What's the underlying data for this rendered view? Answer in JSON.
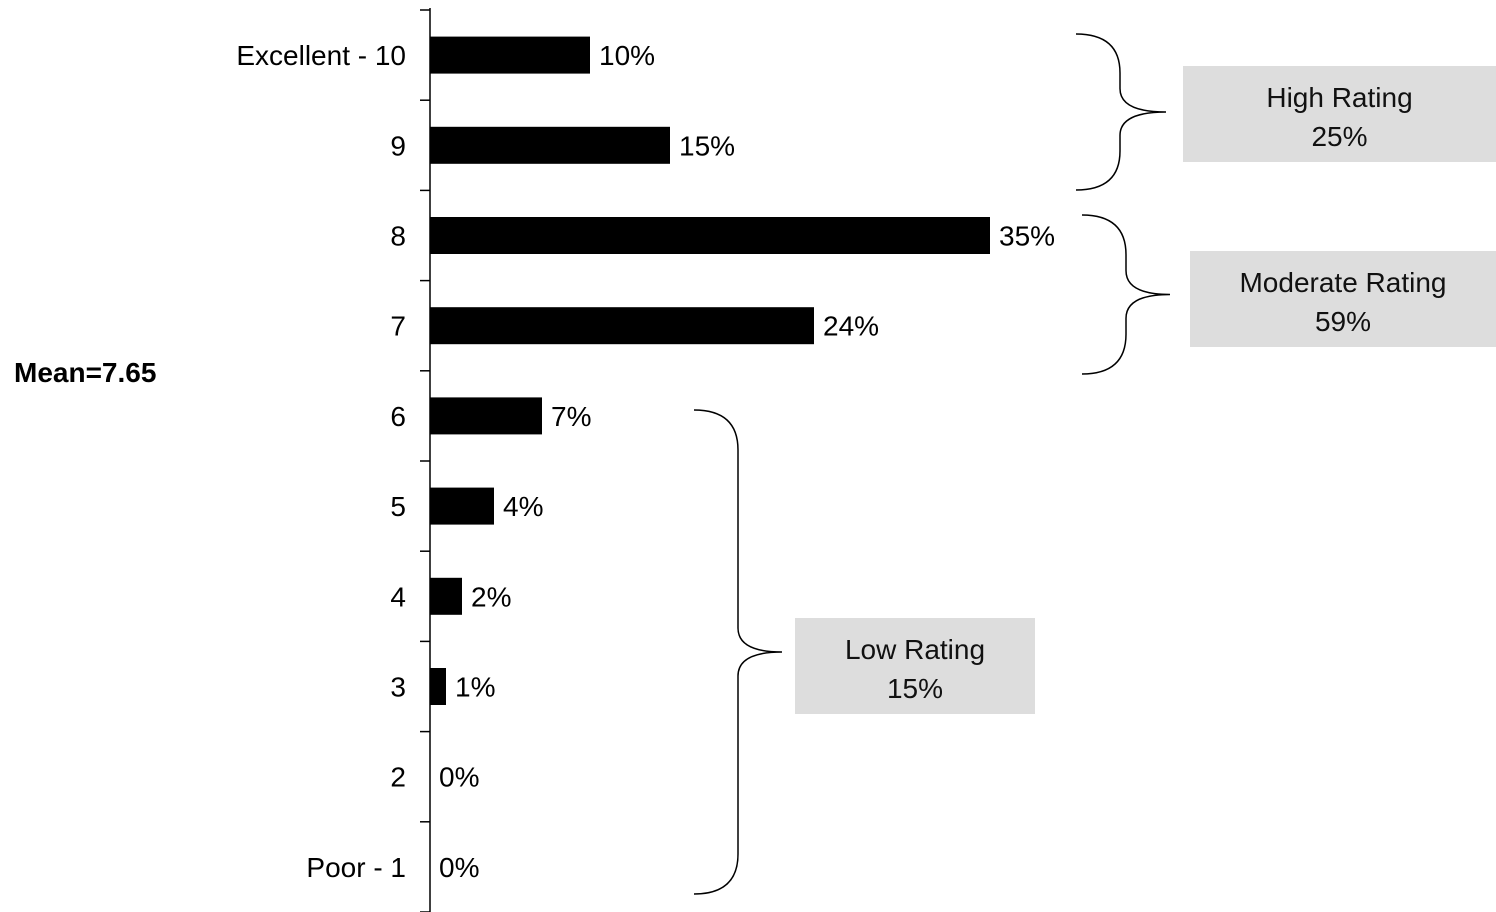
{
  "chart_data": {
    "type": "bar",
    "orientation": "horizontal",
    "categories": [
      "Excellent - 10",
      "9",
      "8",
      "7",
      "6",
      "5",
      "4",
      "3",
      "2",
      "Poor - 1"
    ],
    "values": [
      10,
      15,
      35,
      24,
      7,
      4,
      2,
      1,
      0,
      0
    ],
    "value_labels": [
      "10%",
      "15%",
      "35%",
      "24%",
      "7%",
      "4%",
      "2%",
      "1%",
      "0%",
      "0%"
    ],
    "unit": "%",
    "bar_color": "#000000",
    "xlim": [
      0,
      35
    ],
    "grid": false,
    "legend": "none",
    "mean_label": "Mean=7.65",
    "groups": [
      {
        "label": "High Rating",
        "value": "25%",
        "from": 0,
        "to": 1
      },
      {
        "label": "Moderate Rating",
        "value": "59%",
        "from": 2,
        "to": 3
      },
      {
        "label": "Low Rating",
        "value": "15%",
        "from": 4,
        "to": 9
      }
    ],
    "group_box_color": "#dddddd"
  }
}
